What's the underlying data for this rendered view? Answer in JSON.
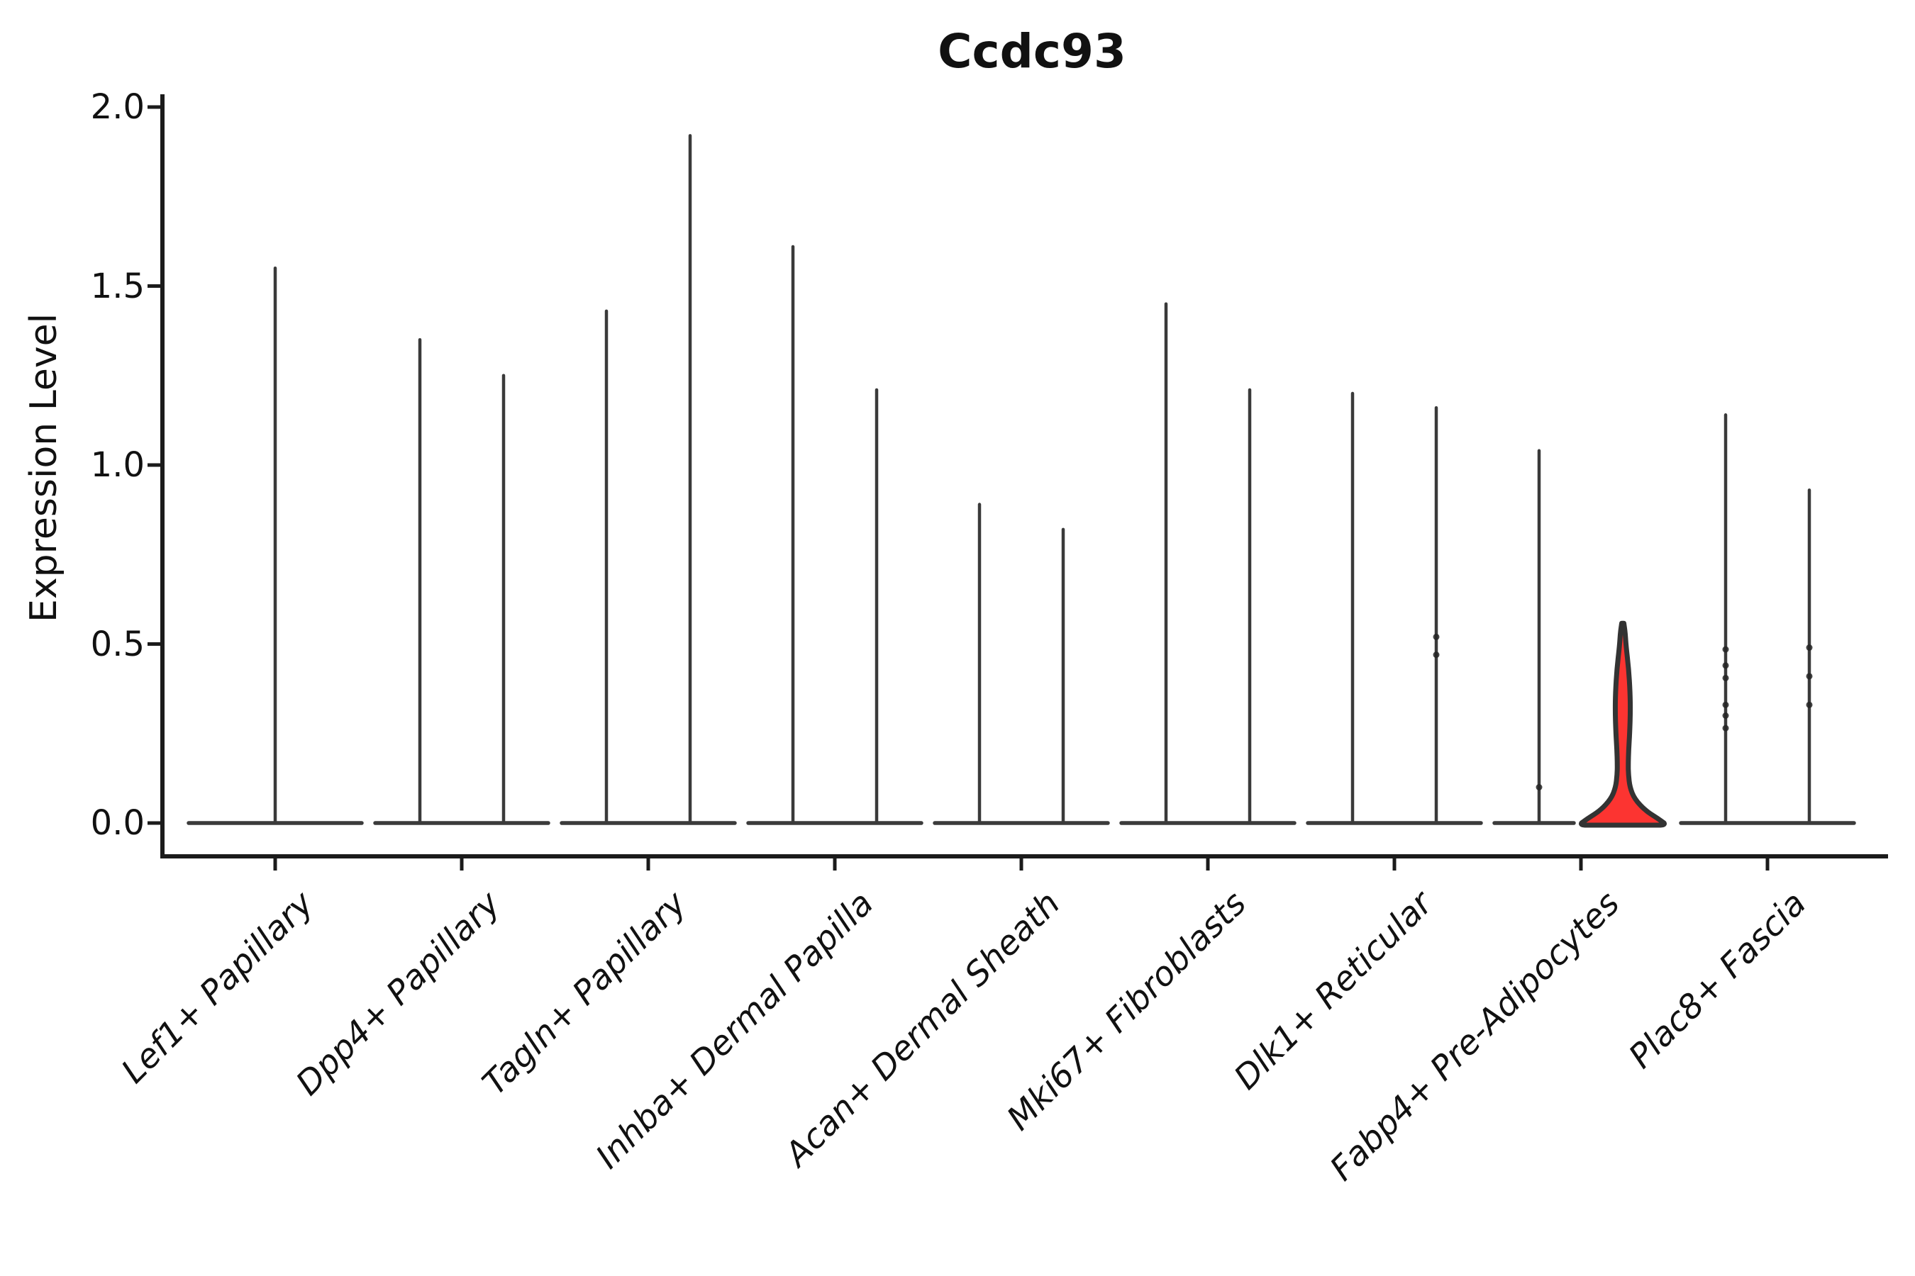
{
  "title": "Ccdc93",
  "y_axis": {
    "label": "Expression Level",
    "tick_labels": [
      "0.0",
      "0.5",
      "1.0",
      "1.5",
      "2.0"
    ],
    "tick_values": [
      0.0,
      0.5,
      1.0,
      1.5,
      2.0
    ],
    "range": [
      0.0,
      2.0
    ]
  },
  "x_axis": {
    "categories": [
      "Lef1+ Papillary",
      "Dpp4+ Papillary",
      "Tagln+ Papillary",
      "Inhba+ Dermal Papilla",
      "Acan+ Dermal Sheath",
      "Mki67+ Fibroblasts",
      "Dlk1+ Reticular",
      "Fabp4+ Pre-Adipocytes",
      "Plac8+ Fascia"
    ]
  },
  "chart_data": {
    "type": "violin",
    "title": "Ccdc93",
    "xlabel": "",
    "ylabel": "Expression Level",
    "ylim": [
      0.0,
      2.0
    ],
    "yticks": [
      0.0,
      0.5,
      1.0,
      1.5,
      2.0
    ],
    "grid": false,
    "legend": false,
    "description": "Violin plot of Ccdc93 expression per fibroblast cell-type cluster; most violins collapse to a thin spike (max expression) over a flat base at 0; one violin (Fabp4+ Pre-Adipocytes, right violin) is highlighted red with visible density",
    "categories": [
      "Lef1+ Papillary",
      "Dpp4+ Papillary",
      "Tagln+ Papillary",
      "Inhba+ Dermal Papilla",
      "Acan+ Dermal Sheath",
      "Mki67+ Fibroblasts",
      "Dlk1+ Reticular",
      "Fabp4+ Pre-Adipocytes",
      "Plac8+ Fascia"
    ],
    "groups": [
      {
        "label": "Lef1+ Papillary",
        "violins": [
          {
            "pos": 0,
            "max": 1.55
          }
        ]
      },
      {
        "label": "Dpp4+ Papillary",
        "violins": [
          {
            "pos": -1,
            "max": 1.35
          },
          {
            "pos": 1,
            "max": 1.25
          }
        ]
      },
      {
        "label": "Tagln+ Papillary",
        "violins": [
          {
            "pos": -1,
            "max": 1.43
          },
          {
            "pos": 1,
            "max": 1.92
          }
        ]
      },
      {
        "label": "Inhba+ Dermal Papilla",
        "violins": [
          {
            "pos": -1,
            "max": 1.61
          },
          {
            "pos": 1,
            "max": 1.21
          }
        ]
      },
      {
        "label": "Acan+ Dermal Sheath",
        "violins": [
          {
            "pos": -1,
            "max": 0.89
          },
          {
            "pos": 1,
            "max": 0.82
          }
        ]
      },
      {
        "label": "Mki67+ Fibroblasts",
        "violins": [
          {
            "pos": -1,
            "max": 1.45
          },
          {
            "pos": 1,
            "max": 1.21
          }
        ]
      },
      {
        "label": "Dlk1+ Reticular",
        "violins": [
          {
            "pos": -1,
            "max": 1.2
          },
          {
            "pos": 1,
            "max": 1.16,
            "dots": [
              0.52,
              0.47
            ]
          }
        ]
      },
      {
        "label": "Fabp4+ Pre-Adipocytes",
        "violins": [
          {
            "pos": -1,
            "max": 1.04,
            "dots": [
              0.1
            ],
            "base_trim": true
          },
          {
            "pos": 1,
            "max": 0.56,
            "highlight": true
          }
        ]
      },
      {
        "label": "Plac8+ Fascia",
        "violins": [
          {
            "pos": -1,
            "max": 1.14,
            "dots": [
              0.485,
              0.44,
              0.405,
              0.33,
              0.3,
              0.265
            ]
          },
          {
            "pos": 1,
            "max": 0.93,
            "dots": [
              0.49,
              0.41,
              0.33
            ]
          }
        ]
      }
    ],
    "highlight_violin": {
      "category": "Fabp4+ Pre-Adipocytes",
      "max": 0.56,
      "profile": [
        [
          0.558,
          0.025
        ],
        [
          0.53,
          0.058
        ],
        [
          0.497,
          0.075
        ],
        [
          0.43,
          0.138
        ],
        [
          0.365,
          0.172
        ],
        [
          0.31,
          0.178
        ],
        [
          0.25,
          0.162
        ],
        [
          0.205,
          0.138
        ],
        [
          0.165,
          0.128
        ],
        [
          0.135,
          0.133
        ],
        [
          0.1,
          0.167
        ],
        [
          0.067,
          0.278
        ],
        [
          0.035,
          0.528
        ],
        [
          0.012,
          0.83
        ],
        [
          0.0,
          0.97
        ]
      ]
    }
  },
  "style": {
    "background": "#ffffff",
    "text_color": "#111111",
    "axis_color": "#1b1b1b",
    "violin_line_color": "#3a3a3a",
    "base_line_color": "#3b3b3b",
    "dot_color": "#262626",
    "highlight_fill": "#fc3431",
    "highlight_stroke": "#333333"
  }
}
